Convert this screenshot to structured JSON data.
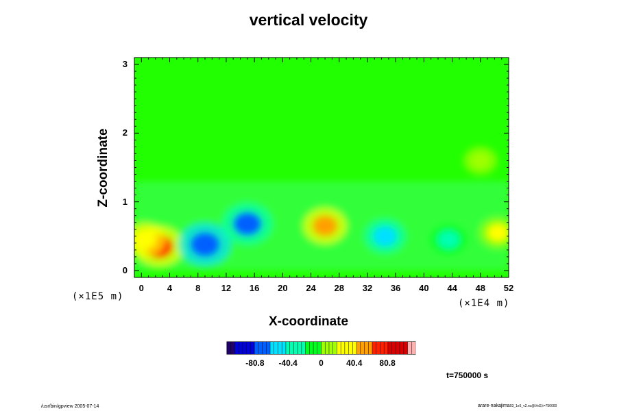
{
  "chart_data": {
    "type": "heatmap",
    "title": "vertical velocity",
    "xlabel": "X-coordinate",
    "ylabel": "Z-coordinate",
    "x_unit_label": "(×1E4 m)",
    "z_unit_label": "(×1E5 m)",
    "x_ticks": [
      "0",
      "4",
      "8",
      "12",
      "16",
      "20",
      "24",
      "28",
      "32",
      "36",
      "40",
      "44",
      "48",
      "52"
    ],
    "z_ticks": [
      "0",
      "1",
      "2",
      "3"
    ],
    "xlim": [
      -1,
      52
    ],
    "zlim": [
      -0.1,
      3.1
    ],
    "colorbar": {
      "ticks": [
        "-80.8",
        "-40.4",
        "0",
        "40.4",
        "80.8"
      ],
      "tick_values": [
        -80.8,
        -40.4,
        0,
        40.4,
        80.8
      ],
      "range": [
        -115,
        115
      ],
      "colors": [
        "#20006a",
        "#0000d8",
        "#0060ff",
        "#00e0ff",
        "#00ffb0",
        "#00ff20",
        "#a0ff00",
        "#ffff00",
        "#ffa000",
        "#ff2000",
        "#d80000",
        "#ffb0b0"
      ]
    },
    "features": [
      {
        "x": 2.5,
        "z": 0.35,
        "value": 70
      },
      {
        "x": 0.5,
        "z": 0.45,
        "value": 40
      },
      {
        "x": 9.0,
        "z": 0.38,
        "value": -80
      },
      {
        "x": 15.0,
        "z": 0.68,
        "value": -75
      },
      {
        "x": 26.0,
        "z": 0.65,
        "value": 50
      },
      {
        "x": 34.5,
        "z": 0.5,
        "value": -45
      },
      {
        "x": 43.5,
        "z": 0.45,
        "value": -35
      },
      {
        "x": 50.5,
        "z": 0.55,
        "value": 30
      },
      {
        "x": 48.0,
        "z": 1.6,
        "value": 15
      }
    ],
    "annotations": {
      "time": "t=750000 s"
    }
  },
  "footer": {
    "left": "/usr/bin/gpview 2005-07-14",
    "right": "arare-nakajima",
    "right_small": "03_1e5_v2.nc@Vel2,t=750000"
  }
}
